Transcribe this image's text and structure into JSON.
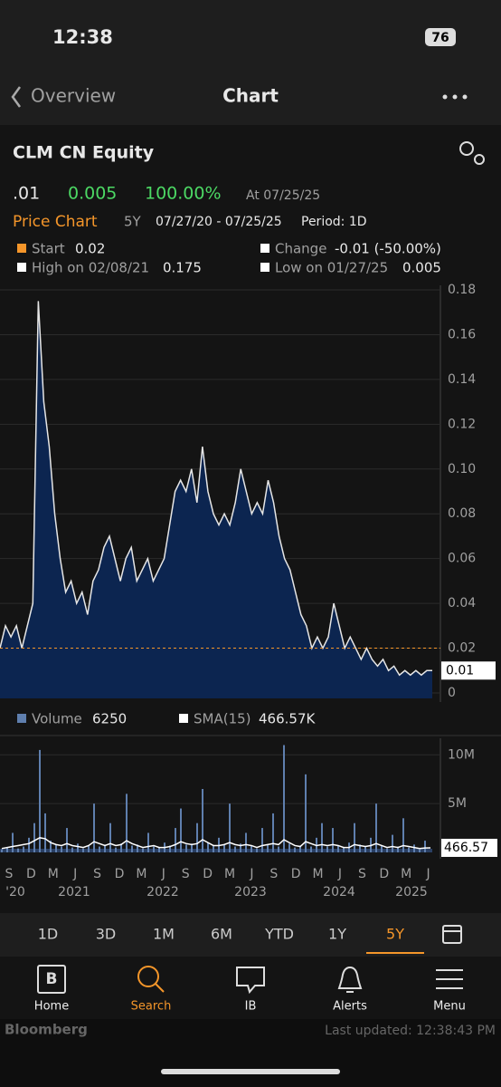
{
  "status_bar": {
    "time": "12:38",
    "battery": "76"
  },
  "nav": {
    "back": "Overview",
    "title": "Chart"
  },
  "header": {
    "ticker": "CLM CN Equity",
    "last": ".01",
    "change": "0.005",
    "change_pct": "100.00%",
    "as_of": "At 07/25/25",
    "chart_label": "Price Chart",
    "range": "5Y",
    "dates": "07/27/20 - 07/25/25",
    "period": "Period: 1D"
  },
  "chart_data": [
    {
      "type": "area",
      "color": "#0c2550",
      "line_color": "#e6e6e6",
      "grid": true,
      "legend": {
        "start_label": "Start",
        "start_value": 0.02,
        "change_label": "Change",
        "change_value": "-0.01 (-50.00%)",
        "high_label": "High on 02/08/21",
        "high_value": 0.175,
        "low_label": "Low on 01/27/25",
        "low_value": 0.005
      },
      "last_label": "0.01",
      "values": [
        0.02,
        0.03,
        0.025,
        0.03,
        0.02,
        0.03,
        0.04,
        0.175,
        0.13,
        0.11,
        0.08,
        0.06,
        0.045,
        0.05,
        0.04,
        0.045,
        0.035,
        0.05,
        0.055,
        0.065,
        0.07,
        0.06,
        0.05,
        0.06,
        0.065,
        0.05,
        0.055,
        0.06,
        0.05,
        0.055,
        0.06,
        0.075,
        0.09,
        0.095,
        0.09,
        0.1,
        0.085,
        0.11,
        0.09,
        0.08,
        0.075,
        0.08,
        0.075,
        0.085,
        0.1,
        0.09,
        0.08,
        0.085,
        0.08,
        0.095,
        0.085,
        0.07,
        0.06,
        0.055,
        0.045,
        0.035,
        0.03,
        0.02,
        0.025,
        0.02,
        0.025,
        0.04,
        0.03,
        0.02,
        0.025,
        0.02,
        0.015,
        0.02,
        0.015,
        0.012,
        0.015,
        0.01,
        0.012,
        0.008,
        0.01,
        0.008,
        0.01,
        0.008,
        0.01,
        0.01
      ],
      "ylim": [
        0,
        0.18
      ],
      "yticks": [
        0,
        0.02,
        0.04,
        0.06,
        0.08,
        {
          "value": 0.1,
          "label": "0.10"
        },
        0.12,
        0.14,
        0.16,
        0.18
      ]
    },
    {
      "type": "bar",
      "grid": true,
      "series": [
        {
          "name": "Volume",
          "color": "#5f7fae",
          "values": [
            300000,
            500000,
            2000000,
            400000,
            600000,
            1500000,
            3000000,
            10500000,
            4000000,
            1200000,
            800000,
            600000,
            2500000,
            500000,
            900000,
            400000,
            700000,
            5000000,
            600000,
            800000,
            3000000,
            500000,
            900000,
            6000000,
            700000,
            800000,
            400000,
            2000000,
            600000,
            500000,
            1000000,
            700000,
            2500000,
            4500000,
            800000,
            900000,
            3000000,
            6500000,
            1000000,
            700000,
            1500000,
            800000,
            5000000,
            600000,
            900000,
            2000000,
            700000,
            400000,
            2500000,
            800000,
            4000000,
            600000,
            11000000,
            900000,
            500000,
            700000,
            8000000,
            600000,
            1500000,
            3000000,
            600000,
            2500000,
            700000,
            500000,
            1000000,
            3000000,
            800000,
            600000,
            1500000,
            5000000,
            700000,
            400000,
            1800000,
            600000,
            3500000,
            500000,
            800000,
            300000,
            1200000,
            6250
          ]
        },
        {
          "name": "SMA(15)",
          "color": "#ffffff",
          "legend_value": "466.57K",
          "last_label": "466.57",
          "values": [
            400000,
            500000,
            600000,
            700000,
            800000,
            900000,
            1200000,
            1500000,
            1400000,
            1000000,
            800000,
            700000,
            900000,
            700000,
            600000,
            500000,
            700000,
            1100000,
            900000,
            700000,
            900000,
            700000,
            800000,
            1200000,
            900000,
            700000,
            500000,
            600000,
            700000,
            500000,
            500000,
            600000,
            800000,
            1100000,
            900000,
            800000,
            900000,
            1300000,
            1000000,
            700000,
            700000,
            800000,
            1000000,
            800000,
            700000,
            800000,
            700000,
            500000,
            700000,
            800000,
            900000,
            800000,
            1300000,
            1000000,
            700000,
            600000,
            1100000,
            900000,
            700000,
            800000,
            700000,
            800000,
            700000,
            500000,
            500000,
            800000,
            700000,
            600000,
            700000,
            900000,
            700000,
            500000,
            600000,
            500000,
            700000,
            600000,
            500000,
            400000,
            450000,
            466570
          ]
        }
      ],
      "ylim": [
        0,
        11700000
      ],
      "yticks": [
        {
          "value": 5000000,
          "label": "5M"
        },
        {
          "value": 10000000,
          "label": "10M"
        }
      ],
      "xtick_labels": [
        "S",
        "D",
        "M",
        "J",
        "S",
        "D",
        "M",
        "J",
        "S",
        "D",
        "M",
        "J",
        "S",
        "D",
        "M",
        "J",
        "S",
        "D",
        "M",
        "J"
      ],
      "year_labels": [
        "'20",
        "2021",
        "2022",
        "2023",
        "2024",
        "2025"
      ]
    }
  ],
  "range_tabs": [
    "1D",
    "3D",
    "1M",
    "6M",
    "YTD",
    "1Y",
    "5Y"
  ],
  "tab_bar": [
    "Home",
    "Search",
    "IB",
    "Alerts",
    "Menu"
  ],
  "footer": {
    "brand": "Bloomberg",
    "updated": "Last updated: 12:38:43 PM"
  }
}
